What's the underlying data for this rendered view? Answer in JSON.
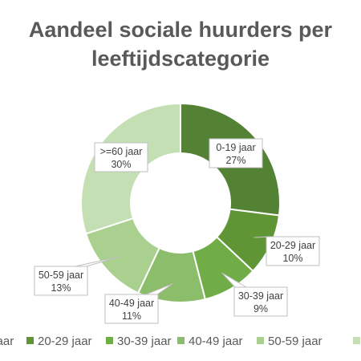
{
  "chart_data": {
    "type": "pie",
    "title_lines": [
      "Aandeel sociale huurders per",
      "leeftijdscategorie"
    ],
    "categories": [
      "0-19 jaar",
      "20-29 jaar",
      "30-39 jaar",
      "40-49 jaar",
      "50-59 jaar",
      ">=60 jaar"
    ],
    "values": [
      27,
      10,
      9,
      11,
      13,
      30
    ],
    "value_labels": [
      "27%",
      "10%",
      "9%",
      "11%",
      "13%",
      "30%"
    ],
    "colors": [
      "#548235",
      "#5f9535",
      "#70ad47",
      "#8cbd6b",
      "#a9d08e",
      "#c5dfb4"
    ],
    "donut": true,
    "legend_position": "bottom"
  }
}
